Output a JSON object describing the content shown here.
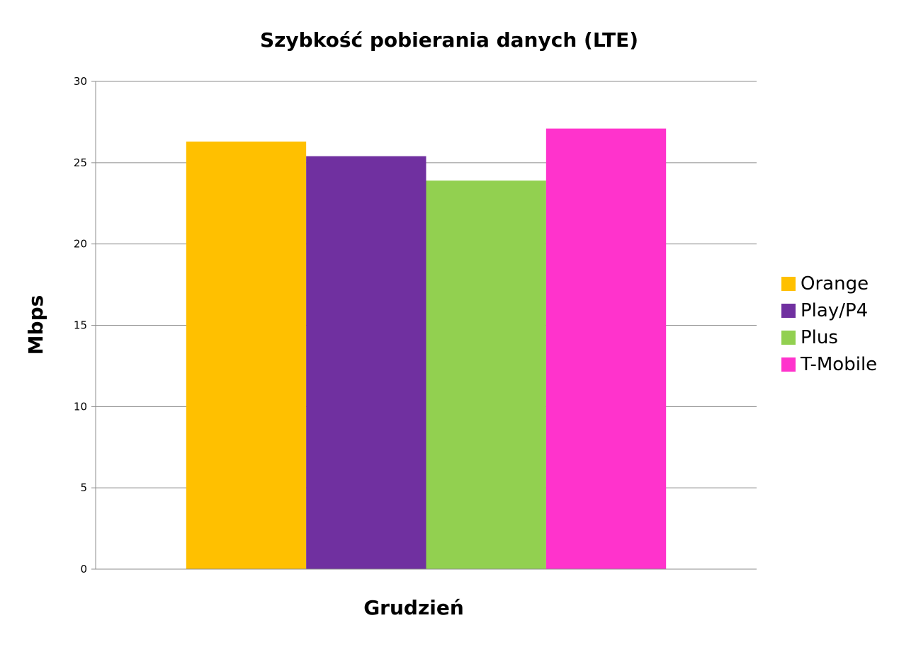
{
  "chart_data": {
    "type": "bar",
    "title": "Szybkość pobierania danych (LTE)",
    "xlabel": "Grudzień",
    "ylabel": "Mbps",
    "ylim": [
      0,
      30
    ],
    "yticks": [
      0,
      5,
      10,
      15,
      20,
      25,
      30
    ],
    "grid": true,
    "legend_position": "right",
    "categories": [
      "Grudzień"
    ],
    "series": [
      {
        "name": "Orange",
        "values": [
          26.3
        ],
        "color": "#ffc000"
      },
      {
        "name": "Play/P4",
        "values": [
          25.4
        ],
        "color": "#7030a0"
      },
      {
        "name": "Plus",
        "values": [
          23.9
        ],
        "color": "#92d050"
      },
      {
        "name": "T-Mobile",
        "values": [
          27.1
        ],
        "color": "#ff33cc"
      }
    ]
  }
}
